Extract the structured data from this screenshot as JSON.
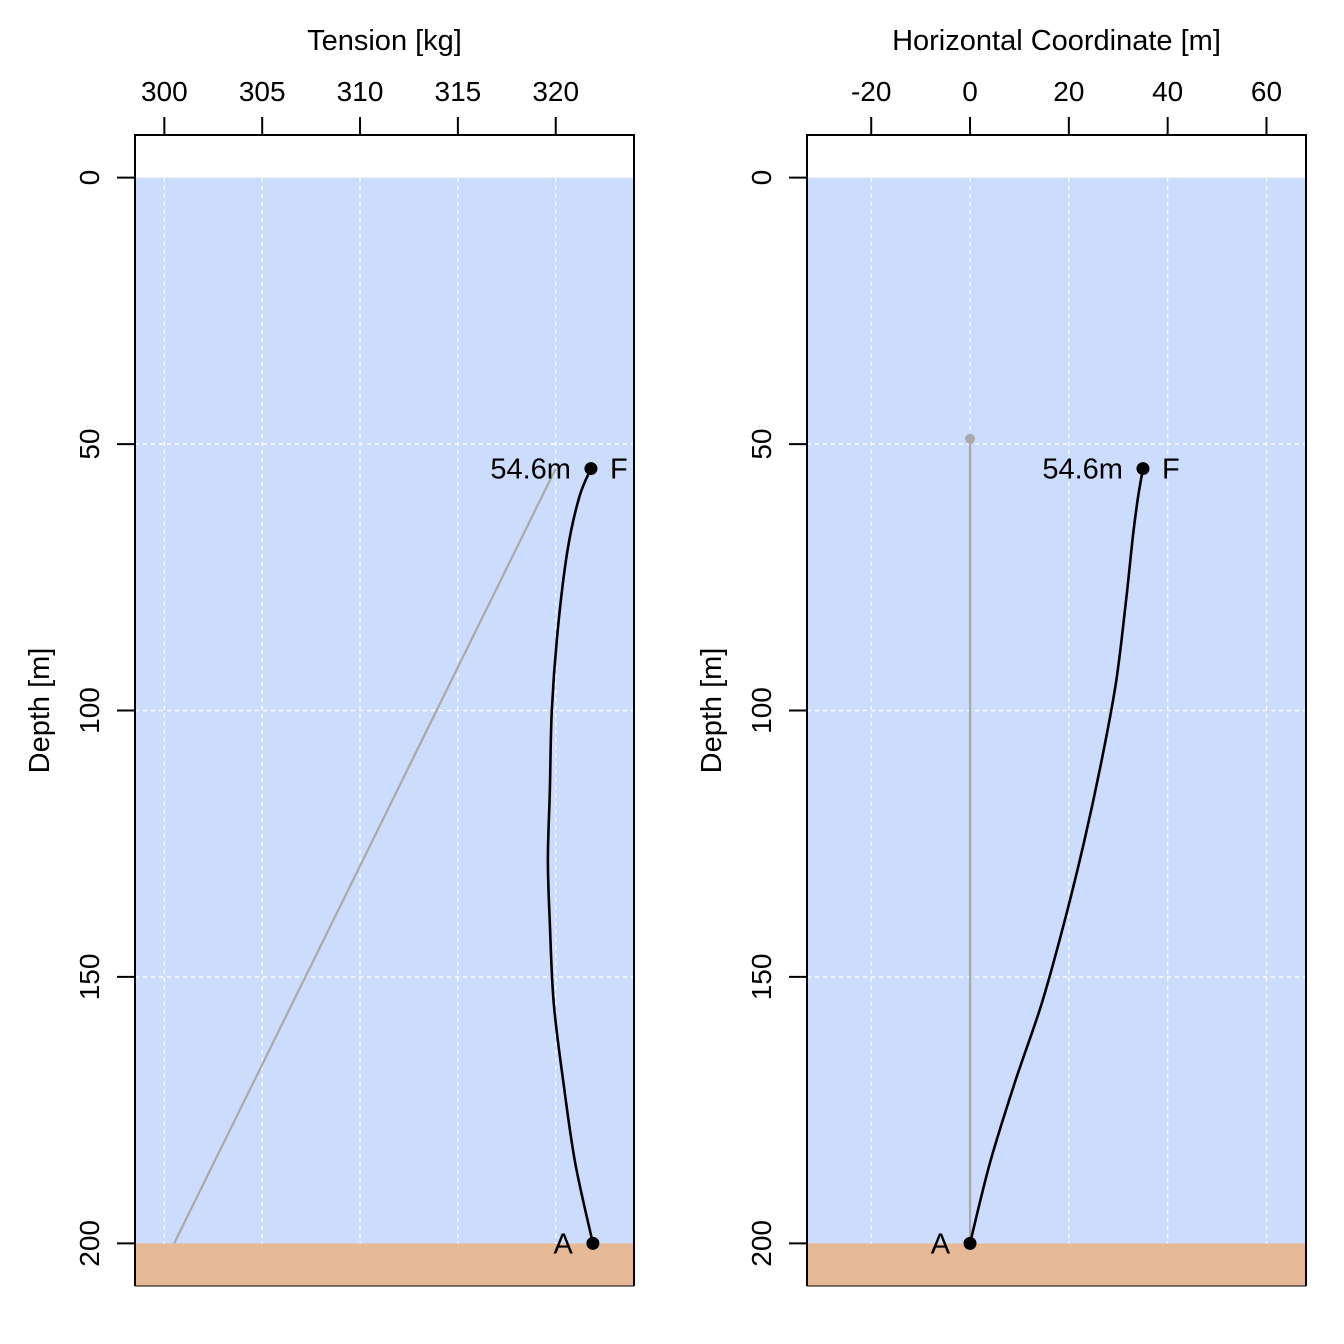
{
  "colors": {
    "water": "#ccdcfc",
    "seabed": "#e5b996",
    "grid": "#ffffff",
    "mooring": "#000000",
    "reference": "#a9a9a9"
  },
  "chart_data": [
    {
      "type": "line",
      "xlabel": "Tension [kg]",
      "ylabel": "Depth [m]",
      "xlim": [
        298.5,
        324
      ],
      "ylim": [
        208,
        -8
      ],
      "y_reversed": true,
      "x_axis_position": "top",
      "grid": true,
      "water_depth": 200,
      "xticks": [
        300,
        305,
        310,
        315,
        320
      ],
      "xtick_labels": [
        "300",
        "305",
        "310",
        "315",
        "320"
      ],
      "yticks": [
        0,
        50,
        100,
        150,
        200
      ],
      "ytick_labels": [
        "0",
        "50",
        "100",
        "150",
        "200"
      ],
      "series": [
        {
          "role": "reference",
          "color": "#a9a9a9",
          "points": [
            [
              300.5,
              200
            ],
            [
              320,
              54.6
            ]
          ]
        },
        {
          "role": "mooring",
          "color": "#000000",
          "points": [
            [
              321.9,
              200
            ],
            [
              321.0,
              185
            ],
            [
              320.4,
              170
            ],
            [
              319.9,
              155
            ],
            [
              319.7,
              140
            ],
            [
              319.6,
              128
            ],
            [
              319.7,
              115
            ],
            [
              319.8,
              100
            ],
            [
              320.1,
              85
            ],
            [
              320.6,
              70
            ],
            [
              321.2,
              60
            ],
            [
              321.8,
              54.6
            ]
          ]
        }
      ],
      "markers": [
        {
          "x": 321.8,
          "y": 54.6,
          "label_left": "54.6m",
          "label_right": "F"
        },
        {
          "x": 321.9,
          "y": 200,
          "label_left": "A",
          "label_right": ""
        }
      ]
    },
    {
      "type": "line",
      "xlabel": "Horizontal Coordinate [m]",
      "ylabel": "Depth [m]",
      "xlim": [
        -33,
        68
      ],
      "ylim": [
        208,
        -8
      ],
      "y_reversed": true,
      "x_axis_position": "top",
      "grid": true,
      "water_depth": 200,
      "xticks": [
        -20,
        0,
        20,
        40,
        60
      ],
      "xtick_labels": [
        "-20",
        "0",
        "20",
        "40",
        "60"
      ],
      "yticks": [
        0,
        50,
        100,
        150,
        200
      ],
      "ytick_labels": [
        "0",
        "50",
        "100",
        "150",
        "200"
      ],
      "series": [
        {
          "role": "reference",
          "color": "#a9a9a9",
          "points": [
            [
              0,
              200
            ],
            [
              0,
              49
            ]
          ]
        },
        {
          "role": "mooring",
          "color": "#000000",
          "points": [
            [
              0,
              200
            ],
            [
              4,
              185
            ],
            [
              9,
              170
            ],
            [
              14.5,
              155
            ],
            [
              19,
              140
            ],
            [
              23,
              125
            ],
            [
              26.5,
              110
            ],
            [
              29.5,
              95
            ],
            [
              31.5,
              80
            ],
            [
              33,
              67
            ],
            [
              34,
              60
            ],
            [
              35,
              54.6
            ]
          ]
        }
      ],
      "markers": [
        {
          "x": 35,
          "y": 54.6,
          "label_left": "54.6m",
          "label_right": "F"
        },
        {
          "x": 0,
          "y": 200,
          "label_left": "A",
          "label_right": ""
        },
        {
          "x": 0,
          "y": 49,
          "label_left": "",
          "label_right": "",
          "color": "#a9a9a9",
          "small": true
        }
      ]
    }
  ]
}
